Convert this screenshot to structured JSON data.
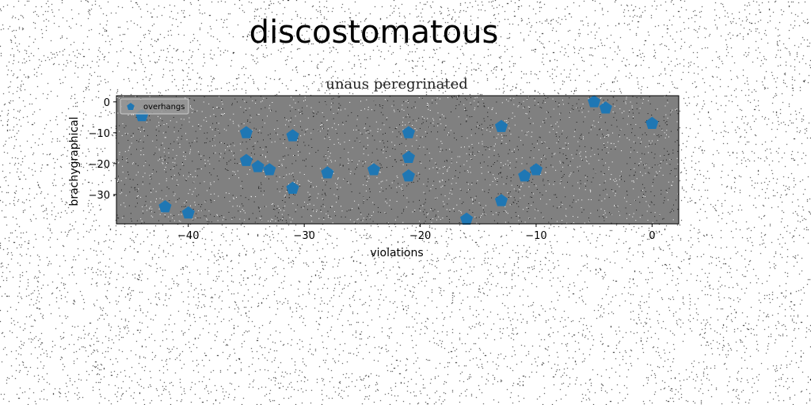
{
  "suptitle": "discostomatous",
  "chart_data": {
    "type": "scatter",
    "title": "unaus peregrinated",
    "xlabel": "violations",
    "ylabel": "brachygraphical",
    "xlim": [
      -46.2,
      2.3
    ],
    "ylim": [
      -39.5,
      2.0
    ],
    "xticks": [
      -40,
      -30,
      -20,
      -10,
      0
    ],
    "yticks": [
      0,
      -10,
      -20,
      -30
    ],
    "grid": false,
    "legend_position": "top-left",
    "background_color": "#808080",
    "series": [
      {
        "name": "overhangs",
        "marker": "pentagon",
        "color": "#1f77b4",
        "points": [
          {
            "x": -44,
            "y": -4.5
          },
          {
            "x": -42,
            "y": -34
          },
          {
            "x": -40,
            "y": -36
          },
          {
            "x": -35,
            "y": -10
          },
          {
            "x": -35,
            "y": -19
          },
          {
            "x": -34,
            "y": -21
          },
          {
            "x": -33,
            "y": -22
          },
          {
            "x": -31,
            "y": -11
          },
          {
            "x": -31,
            "y": -28
          },
          {
            "x": -28,
            "y": -23
          },
          {
            "x": -24,
            "y": -22
          },
          {
            "x": -21,
            "y": -10
          },
          {
            "x": -21,
            "y": -18
          },
          {
            "x": -21,
            "y": -24
          },
          {
            "x": -16,
            "y": -38
          },
          {
            "x": -13,
            "y": -8
          },
          {
            "x": -13,
            "y": -32
          },
          {
            "x": -11,
            "y": -24
          },
          {
            "x": -10,
            "y": -22
          },
          {
            "x": -5,
            "y": 0
          },
          {
            "x": -4,
            "y": -2
          },
          {
            "x": 0,
            "y": -7
          }
        ]
      }
    ]
  }
}
